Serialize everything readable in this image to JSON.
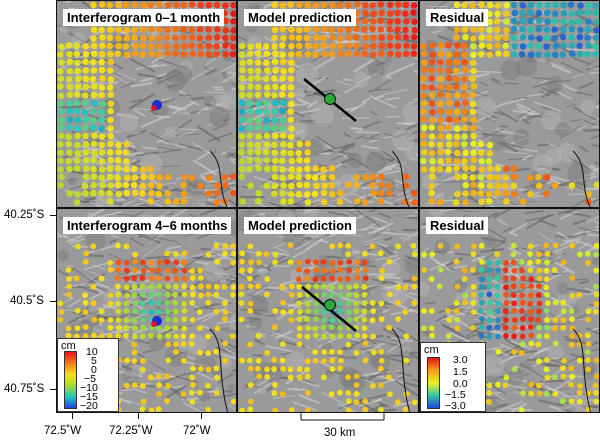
{
  "panels": [
    {
      "title": "Interferogram 0–1 month",
      "kind": "obs1",
      "fault": false
    },
    {
      "title": "Model prediction",
      "kind": "mod1",
      "fault": true
    },
    {
      "title": "Residual",
      "kind": "res1",
      "fault": false
    },
    {
      "title": "Interferogram 4–6 months",
      "kind": "obs2",
      "fault": false
    },
    {
      "title": "Model prediction",
      "kind": "mod2",
      "fault": true
    },
    {
      "title": "Residual",
      "kind": "res2",
      "fault": false
    }
  ],
  "latitude_labels": [
    "40.25˚S",
    "40.5˚S",
    "40.75˚S"
  ],
  "longitude_labels": [
    "72.5˚W",
    "72.25˚W",
    "72˚W"
  ],
  "legend_main": {
    "unit": "cm",
    "ticks": [
      "10",
      "5",
      "0",
      "−5",
      "−10",
      "−15",
      "−20"
    ],
    "range": [
      -20,
      10
    ]
  },
  "legend_residual": {
    "unit": "cm",
    "ticks": [
      "3.0",
      "1.5",
      "0.0",
      "−1.5",
      "−3.0"
    ],
    "range": [
      -3,
      3
    ]
  },
  "scale_bar": {
    "label": "30 km"
  },
  "colors": {
    "fault_line": "#000000",
    "source_marker": "#2aa83a",
    "vent_marker": "#1a2bd8"
  }
}
